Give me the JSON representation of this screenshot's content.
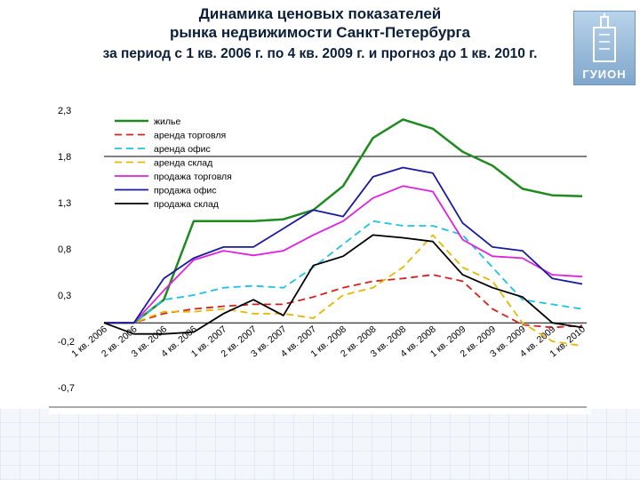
{
  "title": {
    "line1": "Динамика ценовых показателей",
    "line2": "рынка недвижимости Санкт-Петербурга",
    "line3": "за период с 1 кв. 2006 г.  по 4 кв. 2009 г. и прогноз до 1 кв. 2010 г."
  },
  "logo": {
    "text": "ГУИОН"
  },
  "chart_data": {
    "type": "line",
    "categories": [
      "1 кв. 2006",
      "2 кв. 2006",
      "3 кв. 2006",
      "4 кв. 2006",
      "1 кв. 2007",
      "2 кв. 2007",
      "3 кв. 2007",
      "4 кв. 2007",
      "1 кв. 2008",
      "2 кв. 2008",
      "3 кв. 2008",
      "4 кв. 2008",
      "1 кв. 2009",
      "2 кв. 2009",
      "3 кв. 2009",
      "4 кв. 2009",
      "1 кв. 2010"
    ],
    "ylim": [
      -0.7,
      2.3
    ],
    "yticks": [
      2.3,
      1.8,
      1.3,
      0.8,
      0.3,
      -0.2,
      -0.7
    ],
    "ytick_labels": [
      "2,3",
      "1,8",
      "1,3",
      "0,8",
      "0,3",
      "-0,2",
      "-0,7"
    ],
    "series": [
      {
        "name": "жилье",
        "color": "#1f8a1f",
        "dash": "solid",
        "values": [
          0,
          0,
          0.25,
          1.1,
          1.1,
          1.1,
          1.12,
          1.22,
          1.48,
          2.0,
          2.2,
          2.1,
          1.85,
          1.7,
          1.45,
          1.38,
          1.37
        ]
      },
      {
        "name": "аренда торговля",
        "color": "#d62020",
        "dash": "dashed",
        "values": [
          0,
          0,
          0.1,
          0.15,
          0.18,
          0.2,
          0.2,
          0.28,
          0.38,
          0.45,
          0.48,
          0.52,
          0.45,
          0.15,
          -0.02,
          -0.05,
          -0.03
        ]
      },
      {
        "name": "аренда офис",
        "color": "#1ec3df",
        "dash": "dashed",
        "values": [
          0,
          0,
          0.25,
          0.3,
          0.38,
          0.4,
          0.38,
          0.6,
          0.85,
          1.1,
          1.05,
          1.05,
          0.95,
          0.6,
          0.25,
          0.2,
          0.15
        ]
      },
      {
        "name": "аренда склад",
        "color": "#e6b800",
        "dash": "dashed",
        "values": [
          0,
          0,
          0.12,
          0.12,
          0.15,
          0.1,
          0.1,
          0.05,
          0.3,
          0.38,
          0.6,
          0.95,
          0.6,
          0.45,
          0,
          -0.2,
          -0.25
        ]
      },
      {
        "name": "продажа торговля",
        "color": "#e020e0",
        "dash": "solid",
        "values": [
          0,
          0,
          0.35,
          0.68,
          0.78,
          0.73,
          0.78,
          0.95,
          1.1,
          1.35,
          1.48,
          1.42,
          0.9,
          0.72,
          0.7,
          0.52,
          0.5
        ]
      },
      {
        "name": "продажа офис",
        "color": "#1a1aa0",
        "dash": "solid",
        "values": [
          0,
          0,
          0.48,
          0.7,
          0.82,
          0.82,
          1.02,
          1.22,
          1.15,
          1.58,
          1.68,
          1.62,
          1.08,
          0.82,
          0.78,
          0.48,
          0.42
        ]
      },
      {
        "name": "продажа склад",
        "color": "#000000",
        "dash": "solid",
        "values": [
          0,
          -0.12,
          -0.12,
          -0.1,
          0.1,
          0.25,
          0.08,
          0.62,
          0.72,
          0.95,
          0.92,
          0.88,
          0.52,
          0.38,
          0.28,
          0,
          -0.05
        ]
      }
    ]
  }
}
